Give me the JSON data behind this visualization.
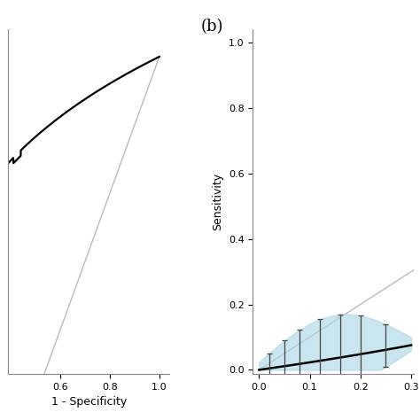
{
  "background_color": "#ffffff",
  "label_b": "(b)",
  "label_b_fontsize": 13,
  "panel_a": {
    "xlabel": "1 - Specificity",
    "xlim": [
      0.39,
      1.04
    ],
    "ylim": [
      0.535,
      1.04
    ],
    "xticks": [
      0.6,
      0.8,
      1.0
    ],
    "yticks": [],
    "diagonal_color": "#bbbbbb",
    "roc_color": "#000000",
    "roc_lw": 1.6
  },
  "panel_b": {
    "ylabel": "Sensitivity",
    "xlim": [
      -0.012,
      0.305
    ],
    "ylim": [
      -0.012,
      1.04
    ],
    "xticks": [
      0.0,
      0.1,
      0.2,
      0.3
    ],
    "yticks": [
      0.0,
      0.2,
      0.4,
      0.6,
      0.8,
      1.0
    ],
    "diagonal_color": "#bbbbbb",
    "roc_color": "#000000",
    "roc_lw": 1.8,
    "ci_color": "#add8e6",
    "ci_alpha": 0.65,
    "errorbar_color": "#444444",
    "errorbar_lw": 0.9
  }
}
